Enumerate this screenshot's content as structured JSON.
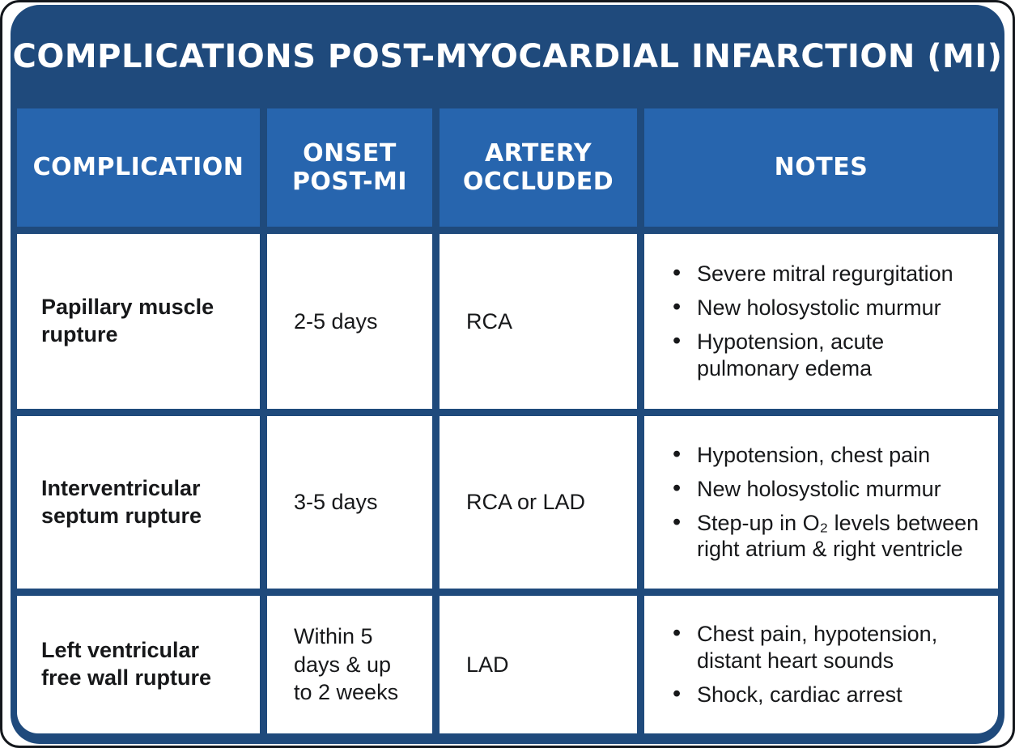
{
  "colors": {
    "card_navy": "#1f4a7c",
    "header_blue": "#2765ae",
    "cell_white": "#ffffff",
    "text_dark": "#17181a",
    "title_text": "#ffffff",
    "page_outline": "#14171c"
  },
  "chart_data": {
    "type": "table",
    "title": "COMPLICATIONS POST-MYOCARDIAL INFARCTION (MI)",
    "columns": [
      "COMPLICATION",
      "ONSET POST-MI",
      "ARTERY OCCLUDED",
      "NOTES"
    ],
    "rows": [
      {
        "complication": "Papillary muscle rupture",
        "onset": "2-5 days",
        "artery": "RCA",
        "notes": [
          "Severe mitral regurgitation",
          "New holosystolic murmur",
          "Hypotension, acute pulmonary edema"
        ]
      },
      {
        "complication": "Interventricular septum rupture",
        "onset": "3-5 days",
        "artery": "RCA or LAD",
        "notes": [
          "Hypotension, chest pain",
          "New holosystolic murmur",
          "Step-up in O₂ levels between right atrium & right ventricle"
        ]
      },
      {
        "complication": "Left ventricular free wall rupture",
        "onset": "Within 5 days & up to 2 weeks",
        "artery": "LAD",
        "notes": [
          "Chest pain, hypotension, distant heart sounds",
          "Shock, cardiac arrest"
        ]
      }
    ]
  }
}
